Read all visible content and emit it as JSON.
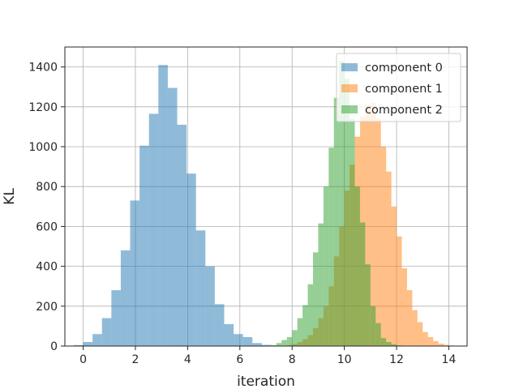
{
  "chart_data": {
    "type": "bar",
    "xlabel": "iteration",
    "ylabel": "KL",
    "xlim": [
      -0.7,
      14.7
    ],
    "ylim": [
      0,
      1500
    ],
    "xticks": [
      0,
      2,
      4,
      6,
      8,
      10,
      12,
      14
    ],
    "yticks": [
      0,
      200,
      400,
      600,
      800,
      1000,
      1200,
      1400
    ],
    "grid": true,
    "legend_position": "top-right",
    "bar_alpha": 0.5,
    "series": [
      {
        "name": "component 0",
        "color": "#1f77b4",
        "bin_width": 0.36,
        "bin_edges_start": -0.36,
        "counts": [
          5,
          20,
          60,
          140,
          280,
          480,
          730,
          1005,
          1165,
          1410,
          1295,
          1110,
          865,
          580,
          400,
          210,
          110,
          60,
          45,
          15,
          6
        ]
      },
      {
        "name": "component 1",
        "color": "#ff7f0e",
        "bin_width": 0.2,
        "bin_edges_start": 7.6,
        "counts": [
          2,
          5,
          10,
          20,
          35,
          55,
          90,
          140,
          200,
          300,
          450,
          600,
          780,
          910,
          1050,
          1150,
          1210,
          1220,
          1140,
          1000,
          875,
          700,
          550,
          390,
          280,
          180,
          120,
          70,
          45,
          25,
          12,
          6,
          3,
          2
        ]
      },
      {
        "name": "component 2",
        "color": "#2ca02c",
        "bin_width": 0.2,
        "bin_edges_start": 7.2,
        "counts": [
          5,
          15,
          30,
          45,
          80,
          140,
          205,
          310,
          470,
          615,
          800,
          995,
          1245,
          1430,
          1340,
          1140,
          800,
          620,
          410,
          200,
          115,
          40,
          20,
          8,
          3
        ]
      }
    ]
  }
}
